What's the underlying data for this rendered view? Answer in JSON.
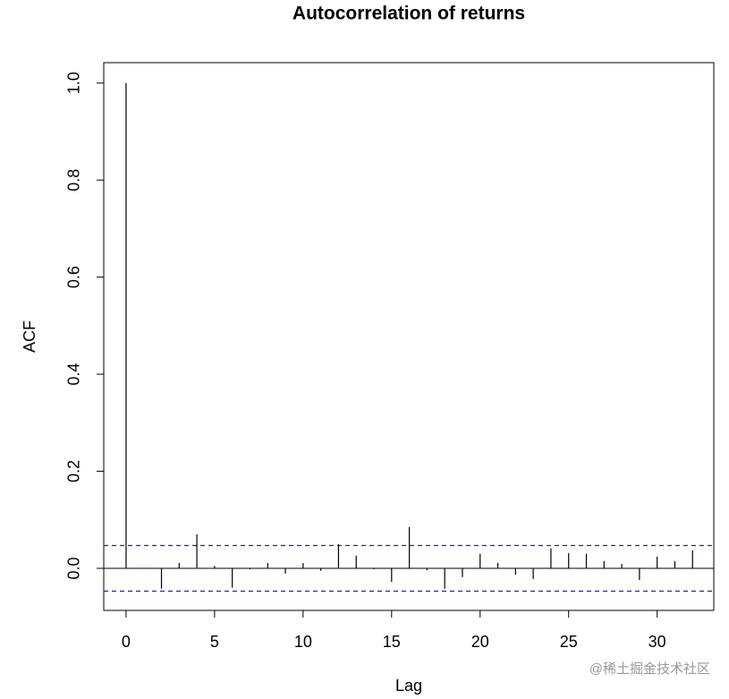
{
  "chart_data": {
    "type": "acf",
    "title": "Autocorrelation of returns",
    "x_label": "Lag",
    "y_label": "ACF",
    "x": [
      0,
      1,
      2,
      3,
      4,
      5,
      6,
      7,
      8,
      9,
      10,
      11,
      12,
      13,
      14,
      15,
      16,
      17,
      18,
      19,
      20,
      21,
      22,
      23,
      24,
      25,
      26,
      27,
      28,
      29,
      30,
      31,
      32
    ],
    "values": [
      1.0,
      0.001,
      -0.042,
      0.011,
      0.07,
      0.005,
      -0.04,
      -0.002,
      0.011,
      -0.011,
      0.011,
      -0.005,
      0.05,
      0.026,
      -0.002,
      -0.028,
      0.085,
      -0.004,
      -0.042,
      -0.018,
      0.03,
      0.011,
      -0.013,
      -0.022,
      0.041,
      0.031,
      0.03,
      0.015,
      0.009,
      -0.024,
      0.024,
      0.015,
      0.037
    ],
    "color": "#000000",
    "confidence_bounds": [
      0.047,
      -0.047
    ],
    "confidence_color": "#2020d0",
    "xlim": [
      -1.26,
      33.2
    ],
    "ylim": [
      -0.0867,
      1.042
    ],
    "xticks": [
      0,
      5,
      10,
      15,
      20,
      25,
      30
    ],
    "yticks": [
      {
        "value": 0,
        "label": "0.0"
      },
      0.2,
      0.4,
      0.6,
      0.8,
      {
        "value": 1,
        "label": "1.0"
      }
    ],
    "watermark": "@稀土掘金技术社区"
  }
}
